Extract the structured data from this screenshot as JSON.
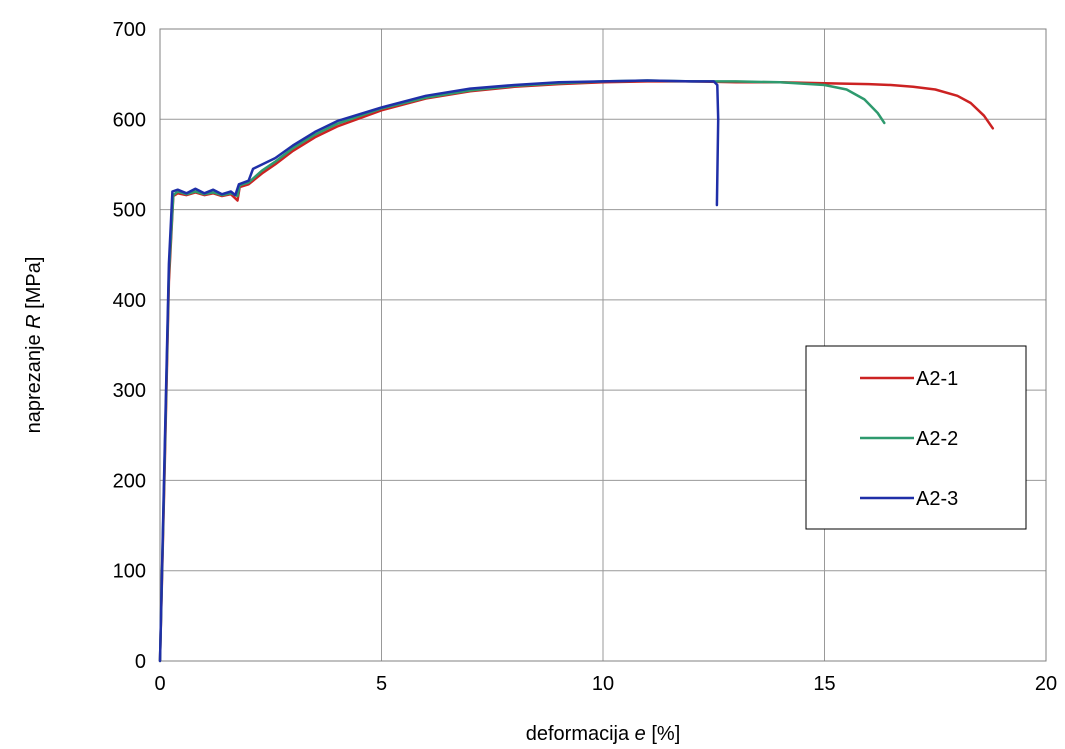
{
  "chart_data": {
    "type": "line",
    "xlabel_pre": "deformacija ",
    "xlabel_var": "e",
    "xlabel_post": " [%]",
    "ylabel_pre": "naprezanje ",
    "ylabel_var": "R",
    "ylabel_post": " [MPa]",
    "xlim": [
      0,
      20
    ],
    "ylim": [
      0,
      700
    ],
    "x_ticks": [
      0,
      5,
      10,
      15,
      20
    ],
    "y_ticks": [
      0,
      100,
      200,
      300,
      400,
      500,
      600,
      700
    ],
    "grid": true,
    "legend_position": "right",
    "series": [
      {
        "name": "A2-1",
        "color": "#cc2222",
        "points": [
          [
            0,
            0
          ],
          [
            0.1,
            200
          ],
          [
            0.2,
            420
          ],
          [
            0.3,
            515
          ],
          [
            0.4,
            518
          ],
          [
            0.6,
            516
          ],
          [
            0.8,
            519
          ],
          [
            1.0,
            516
          ],
          [
            1.2,
            518
          ],
          [
            1.4,
            515
          ],
          [
            1.6,
            517
          ],
          [
            1.75,
            510
          ],
          [
            1.8,
            525
          ],
          [
            2.0,
            528
          ],
          [
            2.3,
            540
          ],
          [
            2.6,
            550
          ],
          [
            3,
            565
          ],
          [
            3.5,
            580
          ],
          [
            4,
            592
          ],
          [
            5,
            610
          ],
          [
            6,
            623
          ],
          [
            7,
            631
          ],
          [
            8,
            636
          ],
          [
            9,
            639
          ],
          [
            10,
            641
          ],
          [
            11,
            642
          ],
          [
            12,
            642
          ],
          [
            13,
            641
          ],
          [
            14,
            641
          ],
          [
            15,
            640
          ],
          [
            16,
            639
          ],
          [
            16.5,
            638
          ],
          [
            17,
            636
          ],
          [
            17.5,
            633
          ],
          [
            18,
            626
          ],
          [
            18.3,
            618
          ],
          [
            18.6,
            604
          ],
          [
            18.8,
            590
          ]
        ]
      },
      {
        "name": "A2-2",
        "color": "#2e9a6e",
        "points": [
          [
            0,
            0
          ],
          [
            0.1,
            210
          ],
          [
            0.2,
            430
          ],
          [
            0.3,
            516
          ],
          [
            0.4,
            520
          ],
          [
            0.6,
            517
          ],
          [
            0.8,
            520
          ],
          [
            1.0,
            517
          ],
          [
            1.2,
            519
          ],
          [
            1.4,
            516
          ],
          [
            1.6,
            518
          ],
          [
            1.75,
            515
          ],
          [
            1.8,
            527
          ],
          [
            2.0,
            530
          ],
          [
            2.3,
            543
          ],
          [
            2.6,
            553
          ],
          [
            3,
            568
          ],
          [
            3.5,
            583
          ],
          [
            4,
            595
          ],
          [
            5,
            612
          ],
          [
            6,
            624
          ],
          [
            7,
            632
          ],
          [
            8,
            637
          ],
          [
            9,
            640
          ],
          [
            10,
            642
          ],
          [
            11,
            643
          ],
          [
            12,
            642
          ],
          [
            13,
            642
          ],
          [
            14,
            641
          ],
          [
            15,
            638
          ],
          [
            15.5,
            633
          ],
          [
            15.9,
            622
          ],
          [
            16.2,
            607
          ],
          [
            16.35,
            596
          ]
        ]
      },
      {
        "name": "A2-3",
        "color": "#1f2fa8",
        "points": [
          [
            0,
            0
          ],
          [
            0.1,
            220
          ],
          [
            0.2,
            440
          ],
          [
            0.28,
            520
          ],
          [
            0.4,
            522
          ],
          [
            0.6,
            518
          ],
          [
            0.8,
            523
          ],
          [
            1.0,
            518
          ],
          [
            1.2,
            522
          ],
          [
            1.4,
            517
          ],
          [
            1.6,
            520
          ],
          [
            1.7,
            516
          ],
          [
            1.78,
            528
          ],
          [
            2.0,
            532
          ],
          [
            2.1,
            545
          ],
          [
            2.6,
            557
          ],
          [
            3,
            571
          ],
          [
            3.5,
            586
          ],
          [
            4,
            598
          ],
          [
            5,
            613
          ],
          [
            6,
            626
          ],
          [
            7,
            634
          ],
          [
            8,
            638
          ],
          [
            9,
            641
          ],
          [
            10,
            642
          ],
          [
            11,
            643
          ],
          [
            12,
            642
          ],
          [
            12.5,
            642
          ],
          [
            12.58,
            638
          ],
          [
            12.6,
            600
          ],
          [
            12.57,
            505
          ]
        ]
      }
    ]
  }
}
